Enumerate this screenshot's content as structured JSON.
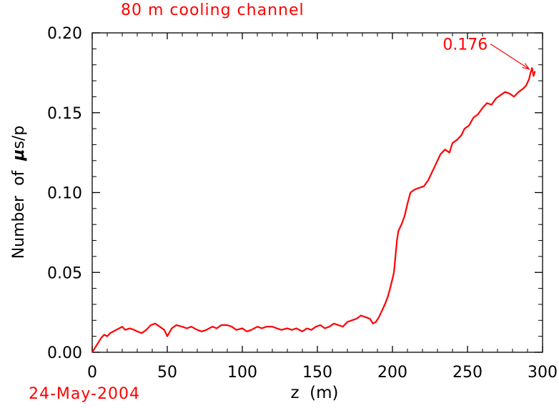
{
  "chart_data": {
    "type": "line",
    "title": "80 m cooling channel",
    "date_label": "24-May-2004",
    "xlabel": "z  (m)",
    "ylabel_prefix": "Number  of  ",
    "ylabel_mu": "μ",
    "ylabel_suffix": "s/p",
    "xlim": [
      0,
      300
    ],
    "ylim": [
      0,
      0.2
    ],
    "x_ticks": [
      "0",
      "50",
      "100",
      "150",
      "200",
      "250",
      "300"
    ],
    "y_ticks": [
      "0.00",
      "0.05",
      "0.10",
      "0.15",
      "0.20"
    ],
    "grid": false,
    "series": [
      {
        "color": "#ff0000",
        "points": [
          [
            0,
            0.0
          ],
          [
            2,
            0.003
          ],
          [
            4,
            0.006
          ],
          [
            6,
            0.009
          ],
          [
            8,
            0.011
          ],
          [
            10,
            0.01
          ],
          [
            12,
            0.012
          ],
          [
            14,
            0.013
          ],
          [
            16,
            0.014
          ],
          [
            18,
            0.015
          ],
          [
            20,
            0.016
          ],
          [
            22,
            0.014
          ],
          [
            25,
            0.015
          ],
          [
            28,
            0.014
          ],
          [
            30,
            0.013
          ],
          [
            33,
            0.012
          ],
          [
            36,
            0.014
          ],
          [
            39,
            0.017
          ],
          [
            42,
            0.018
          ],
          [
            45,
            0.016
          ],
          [
            48,
            0.014
          ],
          [
            50,
            0.01
          ],
          [
            53,
            0.015
          ],
          [
            56,
            0.017
          ],
          [
            60,
            0.016
          ],
          [
            63,
            0.015
          ],
          [
            66,
            0.016
          ],
          [
            70,
            0.014
          ],
          [
            73,
            0.013
          ],
          [
            76,
            0.014
          ],
          [
            80,
            0.016
          ],
          [
            83,
            0.015
          ],
          [
            86,
            0.017
          ],
          [
            90,
            0.017
          ],
          [
            93,
            0.016
          ],
          [
            96,
            0.014
          ],
          [
            100,
            0.015
          ],
          [
            103,
            0.013
          ],
          [
            106,
            0.014
          ],
          [
            110,
            0.016
          ],
          [
            113,
            0.015
          ],
          [
            116,
            0.016
          ],
          [
            120,
            0.016
          ],
          [
            123,
            0.015
          ],
          [
            126,
            0.014
          ],
          [
            130,
            0.015
          ],
          [
            133,
            0.014
          ],
          [
            136,
            0.015
          ],
          [
            140,
            0.013
          ],
          [
            143,
            0.015
          ],
          [
            146,
            0.014
          ],
          [
            149,
            0.016
          ],
          [
            152,
            0.017
          ],
          [
            155,
            0.015
          ],
          [
            158,
            0.016
          ],
          [
            161,
            0.018
          ],
          [
            164,
            0.017
          ],
          [
            167,
            0.016
          ],
          [
            170,
            0.019
          ],
          [
            173,
            0.02
          ],
          [
            176,
            0.021
          ],
          [
            179,
            0.023
          ],
          [
            182,
            0.022
          ],
          [
            185,
            0.021
          ],
          [
            187,
            0.018
          ],
          [
            189,
            0.019
          ],
          [
            191,
            0.022
          ],
          [
            193,
            0.026
          ],
          [
            195,
            0.03
          ],
          [
            197,
            0.035
          ],
          [
            199,
            0.042
          ],
          [
            201,
            0.05
          ],
          [
            202,
            0.06
          ],
          [
            203,
            0.07
          ],
          [
            204,
            0.076
          ],
          [
            206,
            0.08
          ],
          [
            208,
            0.085
          ],
          [
            210,
            0.093
          ],
          [
            212,
            0.1
          ],
          [
            215,
            0.102
          ],
          [
            218,
            0.103
          ],
          [
            221,
            0.104
          ],
          [
            224,
            0.108
          ],
          [
            226,
            0.112
          ],
          [
            229,
            0.118
          ],
          [
            232,
            0.124
          ],
          [
            235,
            0.127
          ],
          [
            238,
            0.125
          ],
          [
            240,
            0.131
          ],
          [
            243,
            0.133
          ],
          [
            246,
            0.136
          ],
          [
            248,
            0.14
          ],
          [
            251,
            0.142
          ],
          [
            254,
            0.147
          ],
          [
            257,
            0.149
          ],
          [
            260,
            0.153
          ],
          [
            263,
            0.156
          ],
          [
            266,
            0.155
          ],
          [
            269,
            0.159
          ],
          [
            272,
            0.161
          ],
          [
            275,
            0.163
          ],
          [
            278,
            0.162
          ],
          [
            281,
            0.16
          ],
          [
            284,
            0.163
          ],
          [
            287,
            0.165
          ],
          [
            289,
            0.167
          ],
          [
            291,
            0.171
          ],
          [
            292,
            0.175
          ],
          [
            293,
            0.178
          ],
          [
            294,
            0.173
          ],
          [
            295,
            0.176
          ]
        ]
      }
    ],
    "annotations": [
      {
        "text": "0.176",
        "x": 293,
        "y": 0.176
      }
    ]
  }
}
